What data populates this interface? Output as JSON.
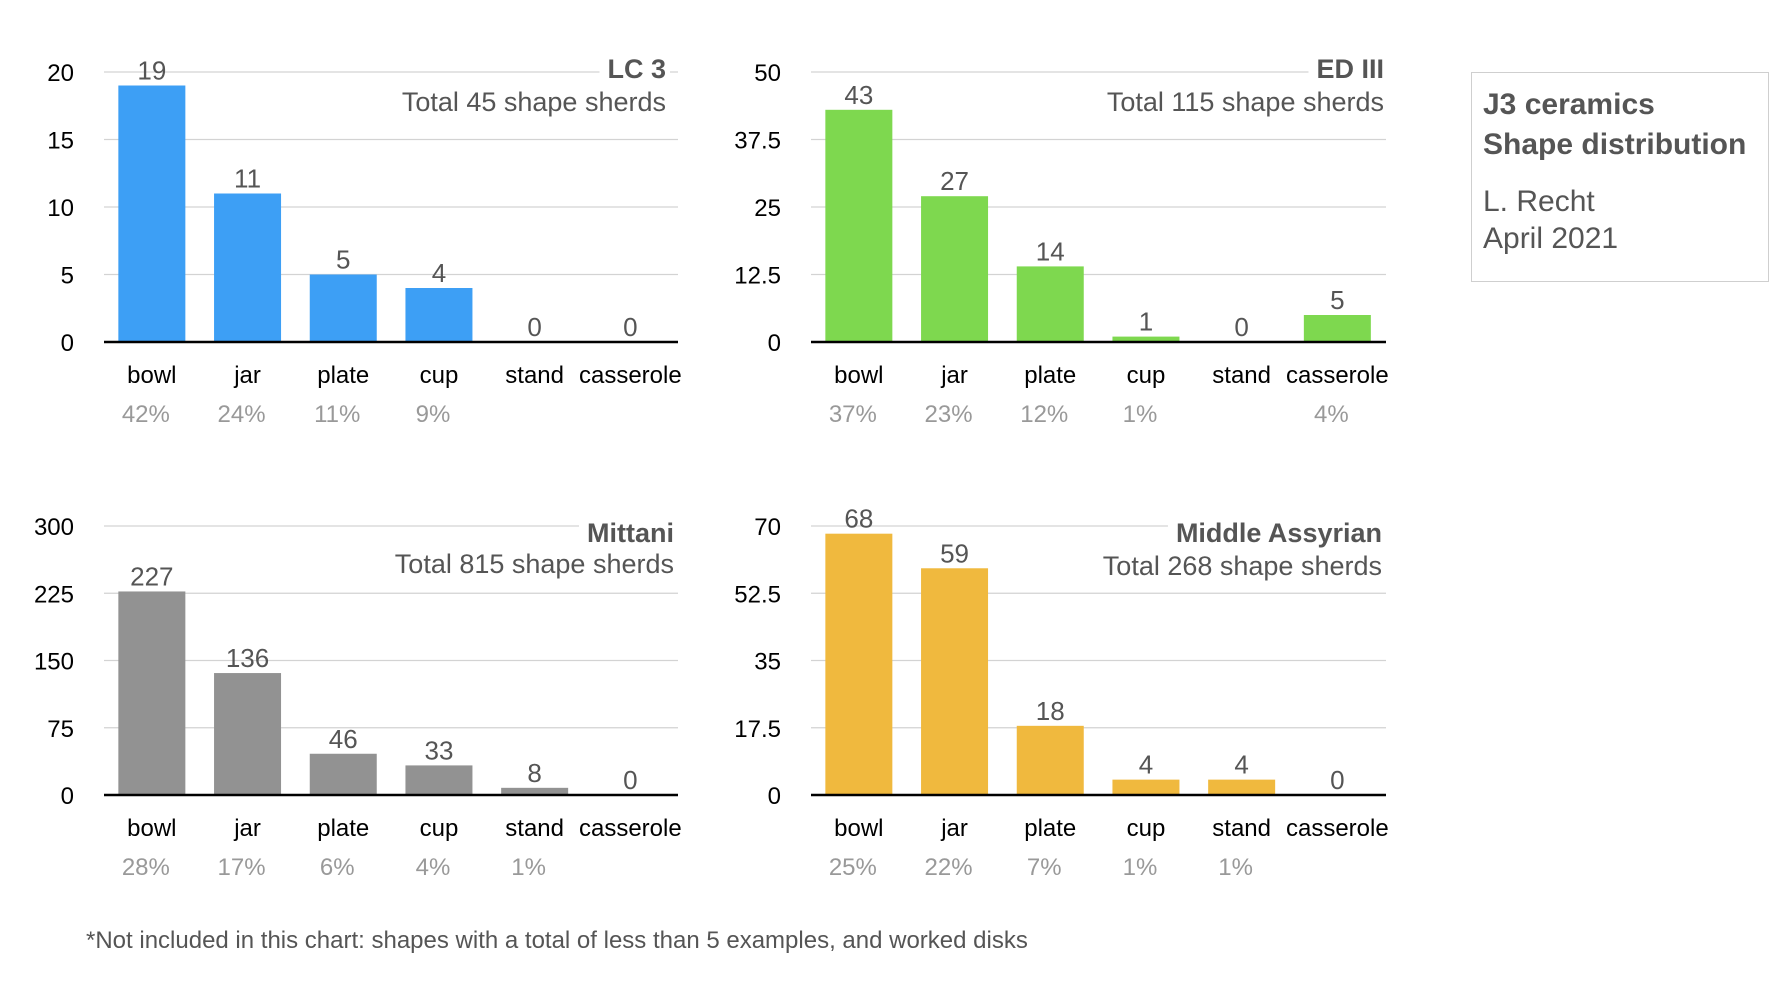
{
  "info": {
    "title_line1": "J3 ceramics",
    "title_line2": "Shape distribution",
    "author": "L. Recht",
    "date": "April 2021"
  },
  "footnote": "*Not included in this chart: shapes with a total of less than 5 examples, and worked disks",
  "colors": {
    "axis": "#000000",
    "grid": "#d3d3d3",
    "tick_text": "#000000",
    "value_text": "#555555",
    "percent_text": "#999999",
    "title_text": "#555555"
  },
  "chart_data": [
    {
      "type": "bar",
      "title": "LC 3",
      "subtitle": "Total 45 shape sherds",
      "categories": [
        "bowl",
        "jar",
        "plate",
        "cup",
        "stand",
        "casserole"
      ],
      "values": [
        19,
        11,
        5,
        4,
        0,
        0
      ],
      "percents": [
        "42%",
        "24%",
        "11%",
        "9%",
        "",
        ""
      ],
      "ylim": [
        0,
        20
      ],
      "yticks": [
        "0",
        "5",
        "10",
        "15",
        "20"
      ],
      "color": "#3d9ff5",
      "grid": true
    },
    {
      "type": "bar",
      "title": "ED III",
      "subtitle": "Total 115 shape sherds",
      "categories": [
        "bowl",
        "jar",
        "plate",
        "cup",
        "stand",
        "casserole"
      ],
      "values": [
        43,
        27,
        14,
        1,
        0,
        5
      ],
      "percents": [
        "37%",
        "23%",
        "12%",
        "1%",
        "",
        "4%"
      ],
      "ylim": [
        0,
        50
      ],
      "yticks": [
        "0",
        "12.5",
        "25",
        "37.5",
        "50"
      ],
      "color": "#7ed84f",
      "grid": true
    },
    {
      "type": "bar",
      "title": "Mittani",
      "subtitle": "Total 815 shape sherds",
      "categories": [
        "bowl",
        "jar",
        "plate",
        "cup",
        "stand",
        "casserole"
      ],
      "values": [
        227,
        136,
        46,
        33,
        8,
        0
      ],
      "percents": [
        "28%",
        "17%",
        "6%",
        "4%",
        "1%",
        ""
      ],
      "ylim": [
        0,
        300
      ],
      "yticks": [
        "0",
        "75",
        "150",
        "225",
        "300"
      ],
      "color": "#929292",
      "grid": true
    },
    {
      "type": "bar",
      "title": "Middle Assyrian",
      "subtitle": "Total 268 shape sherds",
      "categories": [
        "bowl",
        "jar",
        "plate",
        "cup",
        "stand",
        "casserole"
      ],
      "values": [
        68,
        59,
        18,
        4,
        4,
        0
      ],
      "percents": [
        "25%",
        "22%",
        "7%",
        "1%",
        "1%",
        ""
      ],
      "ylim": [
        0,
        70
      ],
      "yticks": [
        "0",
        "17.5",
        "35",
        "52.5",
        "70"
      ],
      "color": "#f0b93e",
      "grid": true
    }
  ]
}
